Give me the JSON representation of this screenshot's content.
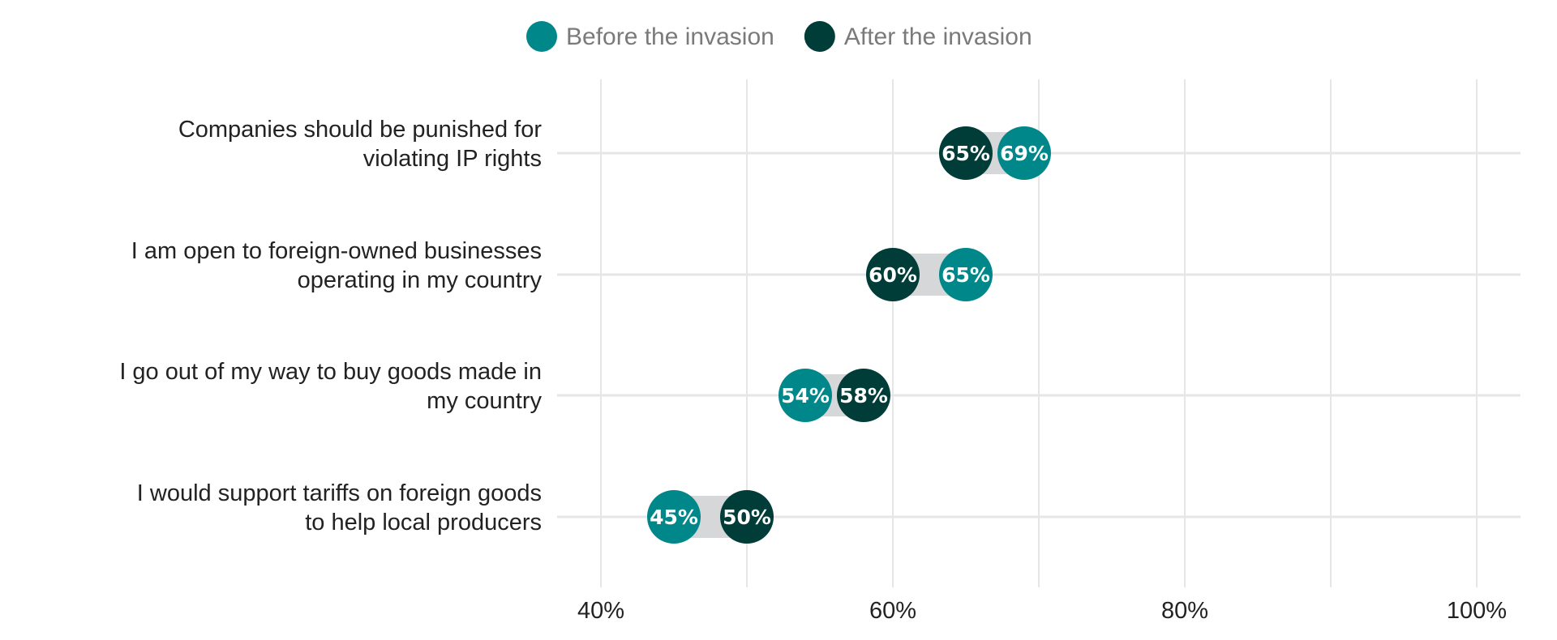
{
  "chart_data": {
    "type": "dumbbell",
    "series": [
      {
        "name": "Before the invasion",
        "color": "#00878a",
        "values": [
          69,
          65,
          54,
          45
        ]
      },
      {
        "name": "After the invasion",
        "color": "#003c38",
        "values": [
          65,
          60,
          58,
          50
        ]
      }
    ],
    "categories": [
      [
        "Companies should be punished for",
        "violating IP rights"
      ],
      [
        "I am open to foreign-owned businesses",
        "operating in my country"
      ],
      [
        "I go out of my way to buy goods made in",
        "my country"
      ],
      [
        "I would support tariffs on foreign goods",
        "to help local producers"
      ]
    ],
    "data_labels": [
      [
        "69%",
        "65%"
      ],
      [
        "65%",
        "60%"
      ],
      [
        "54%",
        "58%"
      ],
      [
        "45%",
        "50%"
      ]
    ],
    "x_ticks": [
      40,
      60,
      80,
      100
    ],
    "x_tick_labels": [
      "40%",
      "60%",
      "80%",
      "100%"
    ],
    "xlim": [
      37,
      103
    ],
    "legend_position": "top-center",
    "grid": true,
    "colors": {
      "connector": "#d5d7d8",
      "gridline": "#e6e6e6"
    }
  }
}
